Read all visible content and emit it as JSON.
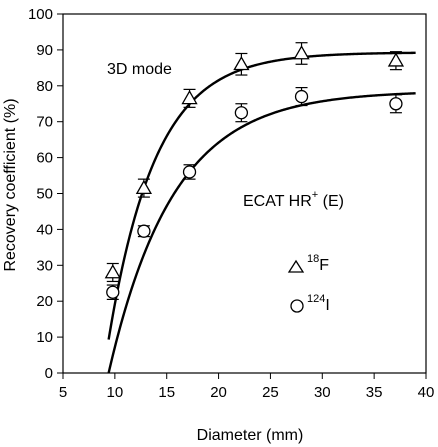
{
  "chart_data": {
    "type": "scatter",
    "xlabel": "Diameter (mm)",
    "ylabel": "Recovery coefficient  (%)",
    "xlim": [
      5,
      40
    ],
    "ylim": [
      0,
      100
    ],
    "x_ticks": [
      5,
      10,
      15,
      20,
      25,
      30,
      35,
      40
    ],
    "y_ticks": [
      0,
      10,
      20,
      30,
      40,
      50,
      60,
      70,
      80,
      90,
      100
    ],
    "grid": false,
    "annotations": {
      "mode": "3D mode",
      "scanner_main": "ECAT HR",
      "scanner_sup": "+",
      "scanner_tail": " (E)"
    },
    "series": [
      {
        "name_sup": "18",
        "name_base": "F",
        "marker": "triangle",
        "x": [
          9.8,
          12.8,
          17.2,
          22.2,
          28.0,
          37.1
        ],
        "y": [
          28.0,
          51.5,
          76.5,
          86.0,
          89.0,
          87.0
        ],
        "err": [
          2.5,
          2.5,
          2.5,
          3.0,
          3.0,
          2.5
        ],
        "fit": {
          "a": 89.3,
          "c": 8.9,
          "k": 0.22
        }
      },
      {
        "name_sup": "124",
        "name_base": "I",
        "marker": "circle",
        "x": [
          9.8,
          12.8,
          17.2,
          22.2,
          28.0,
          37.1
        ],
        "y": [
          22.5,
          39.5,
          56.0,
          72.5,
          77.0,
          75.0
        ],
        "err": [
          2.0,
          1.5,
          2.0,
          2.5,
          2.5,
          2.5
        ],
        "fit": {
          "a": 78.6,
          "c": 9.4,
          "k": 0.16
        }
      }
    ]
  }
}
